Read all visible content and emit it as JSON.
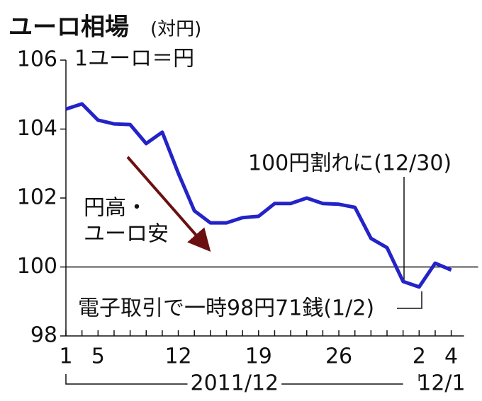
{
  "chart_data": {
    "type": "line",
    "title": "ユーロ相場",
    "subtitle": "(対円)",
    "unit_label": "1ユーロ＝円",
    "categories": [
      "1",
      null,
      "5",
      null,
      null,
      null,
      null,
      "12",
      null,
      null,
      null,
      null,
      "19",
      null,
      null,
      null,
      null,
      "26",
      null,
      null,
      null,
      null,
      "2",
      null,
      "4"
    ],
    "values": [
      104.58,
      104.73,
      104.26,
      104.15,
      104.13,
      103.58,
      103.91,
      102.72,
      101.63,
      101.28,
      101.28,
      101.43,
      101.47,
      101.84,
      101.84,
      102.0,
      101.84,
      101.82,
      101.73,
      100.83,
      100.56,
      99.58,
      99.42,
      100.11,
      99.91
    ],
    "color": "#2323c8",
    "ylim": [
      98,
      106
    ],
    "yticks": [
      98,
      100,
      102,
      104,
      106
    ],
    "reference_line": 100,
    "month_labels": [
      {
        "label": "2011/12",
        "from": 0,
        "to": 21
      },
      {
        "label": "12/1",
        "from": 22,
        "to": 24
      }
    ],
    "annotations": {
      "trend": [
        "円高・",
        "ユーロ安"
      ],
      "break": "100円割れに(12/30)",
      "low": "電子取引で一時98円71銭(1/2)"
    }
  }
}
